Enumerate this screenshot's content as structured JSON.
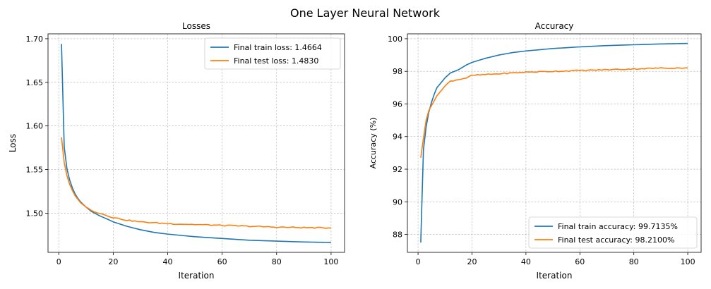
{
  "figure": {
    "title": "One Layer Neural Network"
  },
  "chart_data": [
    {
      "type": "line",
      "title": "Losses",
      "xlabel": "Iteration",
      "ylabel": "Loss",
      "xlim": [
        -3.95,
        104.95
      ],
      "ylim": [
        1.4551,
        1.7056
      ],
      "xticks": [
        0,
        20,
        40,
        60,
        80,
        100
      ],
      "yticks": [
        1.5,
        1.55,
        1.6,
        1.65,
        1.7
      ],
      "ytick_decimals": 2,
      "grid": true,
      "legend_position": "top-right",
      "series": [
        {
          "name": "Final train loss: 1.4664",
          "color": "#1f77b4",
          "anchors": [
            [
              1,
              1.694
            ],
            [
              2,
              1.576
            ],
            [
              3,
              1.551
            ],
            [
              4,
              1.538
            ],
            [
              5,
              1.529
            ],
            [
              6,
              1.522
            ],
            [
              7,
              1.517
            ],
            [
              8,
              1.513
            ],
            [
              10,
              1.507
            ],
            [
              12,
              1.502
            ],
            [
              15,
              1.497
            ],
            [
              18,
              1.493
            ],
            [
              20,
              1.49
            ],
            [
              25,
              1.485
            ],
            [
              30,
              1.481
            ],
            [
              35,
              1.478
            ],
            [
              40,
              1.476
            ],
            [
              50,
              1.473
            ],
            [
              60,
              1.471
            ],
            [
              70,
              1.469
            ],
            [
              80,
              1.468
            ],
            [
              90,
              1.467
            ],
            [
              100,
              1.4664
            ]
          ]
        },
        {
          "name": "Final test loss: 1.4830",
          "color": "#ff7f0e",
          "anchors": [
            [
              1,
              1.587
            ],
            [
              2,
              1.558
            ],
            [
              3,
              1.543
            ],
            [
              4,
              1.533
            ],
            [
              5,
              1.526
            ],
            [
              6,
              1.52
            ],
            [
              7,
              1.516
            ],
            [
              8,
              1.512
            ],
            [
              10,
              1.507
            ],
            [
              12,
              1.503
            ],
            [
              15,
              1.5
            ],
            [
              18,
              1.497
            ],
            [
              20,
              1.495
            ],
            [
              25,
              1.492
            ],
            [
              30,
              1.49
            ],
            [
              35,
              1.489
            ],
            [
              40,
              1.488
            ],
            [
              50,
              1.487
            ],
            [
              60,
              1.486
            ],
            [
              70,
              1.485
            ],
            [
              80,
              1.484
            ],
            [
              90,
              1.4835
            ],
            [
              100,
              1.483
            ]
          ]
        }
      ]
    },
    {
      "type": "line",
      "title": "Accuracy",
      "xlabel": "Iteration",
      "ylabel": "Accuracy (%)",
      "xlim": [
        -3.95,
        104.95
      ],
      "ylim": [
        86.9,
        100.3
      ],
      "xticks": [
        0,
        20,
        40,
        60,
        80,
        100
      ],
      "yticks": [
        88,
        90,
        92,
        94,
        96,
        98,
        100
      ],
      "ytick_decimals": 0,
      "grid": true,
      "legend_position": "bottom-right",
      "series": [
        {
          "name": "Final train accuracy: 99.7135%",
          "color": "#1f77b4",
          "anchors": [
            [
              1,
              87.5
            ],
            [
              2,
              93.2
            ],
            [
              3,
              94.6
            ],
            [
              4,
              95.5
            ],
            [
              5,
              96.1
            ],
            [
              6,
              96.6
            ],
            [
              7,
              97.0
            ],
            [
              8,
              97.2
            ],
            [
              10,
              97.6
            ],
            [
              12,
              97.9
            ],
            [
              15,
              98.1
            ],
            [
              18,
              98.4
            ],
            [
              20,
              98.55
            ],
            [
              25,
              98.8
            ],
            [
              30,
              99.0
            ],
            [
              35,
              99.15
            ],
            [
              40,
              99.25
            ],
            [
              50,
              99.4
            ],
            [
              60,
              99.5
            ],
            [
              70,
              99.58
            ],
            [
              80,
              99.63
            ],
            [
              90,
              99.68
            ],
            [
              100,
              99.7135
            ]
          ]
        },
        {
          "name": "Final test accuracy: 98.2100%",
          "color": "#ff7f0e",
          "anchors": [
            [
              1,
              92.7
            ],
            [
              2,
              93.9
            ],
            [
              3,
              95.0
            ],
            [
              4,
              95.6
            ],
            [
              5,
              95.9
            ],
            [
              6,
              96.2
            ],
            [
              7,
              96.5
            ],
            [
              8,
              96.7
            ],
            [
              10,
              97.1
            ],
            [
              12,
              97.4
            ],
            [
              15,
              97.5
            ],
            [
              18,
              97.6
            ],
            [
              20,
              97.75
            ],
            [
              25,
              97.8
            ],
            [
              30,
              97.85
            ],
            [
              35,
              97.9
            ],
            [
              40,
              97.95
            ],
            [
              50,
              98.0
            ],
            [
              60,
              98.05
            ],
            [
              70,
              98.1
            ],
            [
              80,
              98.15
            ],
            [
              90,
              98.2
            ],
            [
              100,
              98.21
            ]
          ]
        }
      ]
    }
  ]
}
